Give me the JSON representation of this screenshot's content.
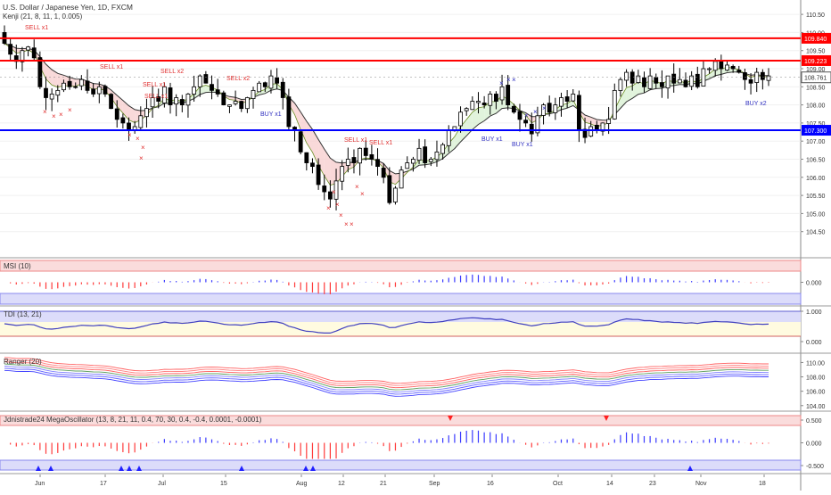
{
  "main": {
    "title": "U.S. Dollar / Japanese Yen, 1D, FXCM",
    "indicator_label": "Kenji (21, 8, 11, 1, 0.005)",
    "yticks": [
      "110.50",
      "110.00",
      "109.50",
      "109.00",
      "108.50",
      "108.00",
      "107.50",
      "107.00",
      "106.50",
      "106.00",
      "105.50",
      "105.00",
      "104.50"
    ],
    "levels": [
      {
        "value": 109.84,
        "label": "109.840",
        "color": "#ff0000"
      },
      {
        "value": 109.223,
        "label": "109.223",
        "color": "#ff0000"
      },
      {
        "value": 107.3,
        "label": "107.300",
        "color": "#0000ff"
      }
    ],
    "last_price": {
      "value": 108.761,
      "label": "108.761"
    },
    "signals": [
      {
        "text": "SELL x1",
        "type": "sell"
      },
      {
        "text": "SELL x1",
        "type": "sell"
      },
      {
        "text": "SELL x1",
        "type": "sell"
      },
      {
        "text": "SELL x1",
        "type": "sell"
      },
      {
        "text": "SELL x2",
        "type": "sell"
      },
      {
        "text": "SELL x2",
        "type": "sell"
      },
      {
        "text": "SELL x1",
        "type": "sell"
      },
      {
        "text": "SELL x1",
        "type": "sell"
      },
      {
        "text": "BUY x1",
        "type": "buy"
      },
      {
        "text": "BUY x1",
        "type": "buy"
      },
      {
        "text": "BUY x1",
        "type": "buy"
      },
      {
        "text": "BUY x2",
        "type": "buy"
      }
    ]
  },
  "panels": [
    {
      "label": "MSI (10)",
      "yticks": [
        "0.000"
      ]
    },
    {
      "label": "TDI (13, 21)",
      "yticks": [
        "1.000",
        "0.000"
      ]
    },
    {
      "label": "Ranger (20)",
      "yticks": [
        "110.00",
        "108.00",
        "106.00",
        "104.00"
      ]
    },
    {
      "label": "Jdnistrade24 MegaOscillator (13, 8, 21, 11, 0.4, 70, 30, 0.4, -0.4, 0.0001, -0.0001)",
      "yticks": [
        "0.500",
        "0.000",
        "-0.500"
      ]
    }
  ],
  "xaxis": {
    "ticks": [
      "Jun",
      "17",
      "Jul",
      "15",
      "Aug",
      "12",
      "21",
      "Sep",
      "16",
      "Oct",
      "14",
      "23",
      "Nov",
      "18"
    ]
  },
  "chart_data": {
    "type": "candlestick",
    "title": "U.S. Dollar / Japanese Yen, 1D, FXCM",
    "ylim": [
      104.0,
      110.7
    ],
    "series": [
      {
        "name": "close",
        "values": [
          109.7,
          109.4,
          109.2,
          109.5,
          109.6,
          109.3,
          108.5,
          108.2,
          108.3,
          108.4,
          108.6,
          108.5,
          108.5,
          108.7,
          108.4,
          108.3,
          108.5,
          108.3,
          107.9,
          107.6,
          107.5,
          107.3,
          107.4,
          107.7,
          107.9,
          108.2,
          108.1,
          108.5,
          108.0,
          108.2,
          108.0,
          108.3,
          108.5,
          108.8,
          108.6,
          108.4,
          108.3,
          108.0,
          108.0,
          108.1,
          107.9,
          108.2,
          108.4,
          108.6,
          108.5,
          108.8,
          108.6,
          108.2,
          107.4,
          107.3,
          106.7,
          106.4,
          106.3,
          105.8,
          105.6,
          105.4,
          105.9,
          106.3,
          106.5,
          106.4,
          106.8,
          106.6,
          106.5,
          106.3,
          106.0,
          105.3,
          105.7,
          106.2,
          106.4,
          106.5,
          106.8,
          106.4,
          106.5,
          106.7,
          106.9,
          107.3,
          107.4,
          107.8,
          107.9,
          108.1,
          108.1,
          108.0,
          108.3,
          108.1,
          108.5,
          108.0,
          107.8,
          107.6,
          107.5,
          107.2,
          107.7,
          108.0,
          107.8,
          108.0,
          108.2,
          108.1,
          108.3,
          107.3,
          107.1,
          107.4,
          107.3,
          107.5,
          107.6,
          108.4,
          108.7,
          108.9,
          108.6,
          108.8,
          108.5,
          108.8,
          108.6,
          108.5,
          108.8,
          108.6,
          108.7,
          108.5,
          108.8,
          108.5,
          109.0,
          109.0,
          109.2,
          109.0,
          109.1,
          109.0,
          108.9,
          108.7,
          108.6,
          108.9,
          108.7,
          108.8
        ],
        "open_high_low": "see candles"
      },
      {
        "name": "MSI (10)"
      },
      {
        "name": "TDI (13, 21)"
      },
      {
        "name": "Ranger (20)"
      },
      {
        "name": "Jdnistrade24 MegaOscillator"
      }
    ],
    "reference_lines": [
      109.84,
      109.223,
      107.3
    ],
    "last_value": 108.761
  }
}
